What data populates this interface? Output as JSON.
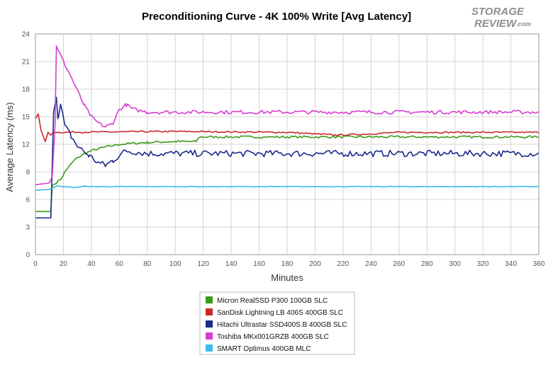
{
  "chart_data": {
    "type": "line",
    "title": "Preconditioning Curve - 4K 100% Write [Avg Latency]",
    "xlabel": "Minutes",
    "ylabel": "Average Latency (ms)",
    "xlim": [
      0,
      360
    ],
    "ylim": [
      0,
      24
    ],
    "xticks": [
      0,
      20,
      40,
      60,
      80,
      100,
      120,
      140,
      160,
      180,
      200,
      220,
      240,
      260,
      280,
      300,
      320,
      340,
      360
    ],
    "yticks": [
      0,
      3,
      6,
      9,
      12,
      15,
      18,
      21,
      24
    ],
    "grid": true,
    "legend_position": "bottom-center",
    "series": [
      {
        "name": "Micron RealSSD P300 100GB SLC",
        "color": "#3a9a1a",
        "noise": 0.12,
        "points": [
          [
            0,
            4.7
          ],
          [
            11,
            4.7
          ],
          [
            12,
            7.5
          ],
          [
            18,
            8.2
          ],
          [
            22,
            9.2
          ],
          [
            28,
            10.3
          ],
          [
            35,
            11.0
          ],
          [
            42,
            11.4
          ],
          [
            50,
            11.7
          ],
          [
            60,
            12.0
          ],
          [
            80,
            12.2
          ],
          [
            100,
            12.3
          ],
          [
            115,
            12.3
          ],
          [
            117,
            12.8
          ],
          [
            360,
            12.8
          ]
        ]
      },
      {
        "name": "SanDisk Lightning LB 406S 400GB SLC",
        "color": "#c8282a",
        "noise": 0.08,
        "points": [
          [
            0,
            14.8
          ],
          [
            2,
            15.3
          ],
          [
            4,
            13.5
          ],
          [
            7,
            12.3
          ],
          [
            9,
            13.3
          ],
          [
            11,
            13.0
          ],
          [
            13,
            13.3
          ],
          [
            100,
            13.4
          ],
          [
            180,
            13.3
          ],
          [
            215,
            13.0
          ],
          [
            235,
            13.1
          ],
          [
            260,
            13.3
          ],
          [
            360,
            13.3
          ]
        ]
      },
      {
        "name": "Hitachi Ultrastar SSD400S.B 400GB SLC",
        "color": "#1a2a8a",
        "noise": 0.35,
        "points": [
          [
            0,
            4.0
          ],
          [
            11,
            4.0
          ],
          [
            13,
            15.5
          ],
          [
            15,
            17.3
          ],
          [
            16,
            15.0
          ],
          [
            18,
            16.3
          ],
          [
            21,
            14.0
          ],
          [
            25,
            13.0
          ],
          [
            30,
            11.8
          ],
          [
            38,
            10.8
          ],
          [
            45,
            10.0
          ],
          [
            50,
            9.7
          ],
          [
            55,
            10.2
          ],
          [
            60,
            10.8
          ],
          [
            65,
            11.3
          ],
          [
            80,
            11.0
          ],
          [
            120,
            11.0
          ],
          [
            200,
            11.0
          ],
          [
            300,
            11.0
          ],
          [
            360,
            11.0
          ]
        ]
      },
      {
        "name": "Toshiba MKx001GRZB 400GB SLC",
        "color": "#d63cd0",
        "noise": 0.2,
        "points": [
          [
            0,
            7.6
          ],
          [
            10,
            7.8
          ],
          [
            12,
            8.5
          ],
          [
            14,
            14.0
          ],
          [
            15,
            22.8
          ],
          [
            17,
            22.0
          ],
          [
            20,
            21.0
          ],
          [
            25,
            19.5
          ],
          [
            30,
            17.8
          ],
          [
            35,
            16.2
          ],
          [
            40,
            15.0
          ],
          [
            45,
            14.3
          ],
          [
            50,
            13.9
          ],
          [
            55,
            14.2
          ],
          [
            60,
            15.8
          ],
          [
            65,
            16.3
          ],
          [
            70,
            15.8
          ],
          [
            80,
            15.5
          ],
          [
            120,
            15.5
          ],
          [
            200,
            15.5
          ],
          [
            300,
            15.5
          ],
          [
            360,
            15.5
          ]
        ]
      },
      {
        "name": "SMART Optimus 400GB MLC",
        "color": "#3cb8ea",
        "noise": 0.03,
        "points": [
          [
            0,
            7.0
          ],
          [
            10,
            7.1
          ],
          [
            13,
            7.3
          ],
          [
            16,
            7.5
          ],
          [
            20,
            7.4
          ],
          [
            28,
            7.3
          ],
          [
            35,
            7.45
          ],
          [
            40,
            7.4
          ],
          [
            360,
            7.4
          ]
        ]
      }
    ]
  },
  "branding": {
    "logo_line1": "STORAGE",
    "logo_line2": "REVIEW",
    "logo_suffix": ".com"
  }
}
